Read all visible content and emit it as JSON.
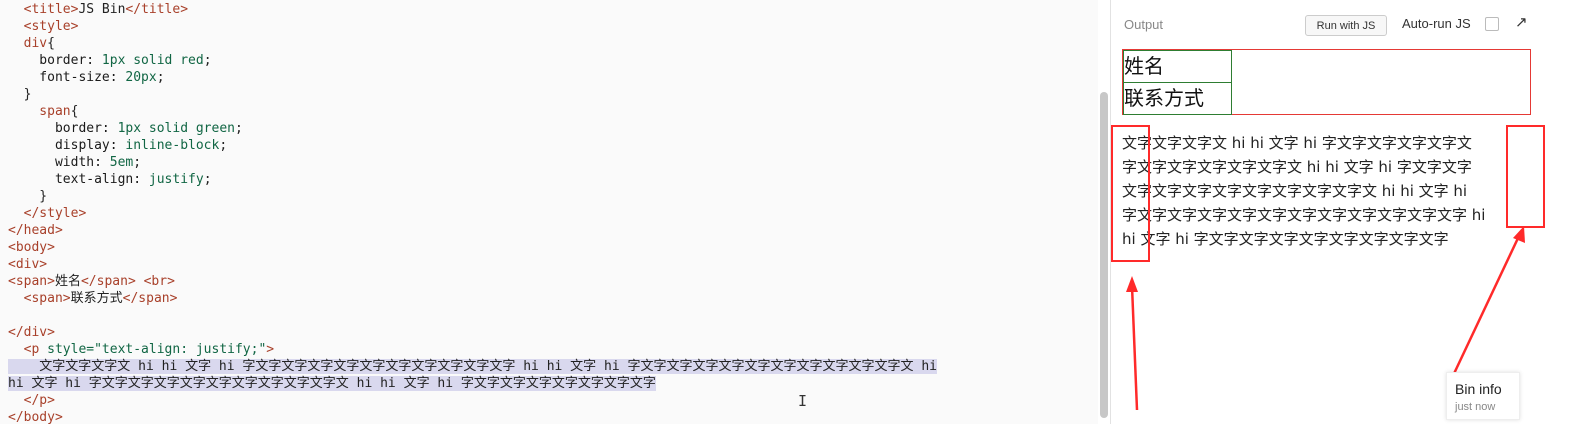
{
  "editor": {
    "lines": [
      [
        [
          "tag",
          "  <title>"
        ],
        [
          "plain",
          "JS Bin"
        ],
        [
          "tag",
          "</title>"
        ]
      ],
      [
        [
          "tag",
          "  <style>"
        ]
      ],
      [
        [
          "tag",
          "  div"
        ],
        [
          "plain",
          "{"
        ]
      ],
      [
        [
          "prop",
          "    border: "
        ],
        [
          "num",
          "1px"
        ],
        [
          "val",
          " solid red"
        ],
        [
          "plain",
          ";"
        ]
      ],
      [
        [
          "prop",
          "    font-size: "
        ],
        [
          "num",
          "20px"
        ],
        [
          "plain",
          ";"
        ]
      ],
      [
        [
          "plain",
          "  }"
        ]
      ],
      [
        [
          "tag",
          "    span"
        ],
        [
          "plain",
          "{"
        ]
      ],
      [
        [
          "prop",
          "      border: "
        ],
        [
          "num",
          "1px"
        ],
        [
          "val",
          " solid green"
        ],
        [
          "plain",
          ";"
        ]
      ],
      [
        [
          "prop",
          "      display: "
        ],
        [
          "val",
          "inline-block"
        ],
        [
          "plain",
          ";"
        ]
      ],
      [
        [
          "prop",
          "      width: "
        ],
        [
          "num",
          "5em"
        ],
        [
          "plain",
          ";"
        ]
      ],
      [
        [
          "prop",
          "      text-align: "
        ],
        [
          "val",
          "justify"
        ],
        [
          "plain",
          ";"
        ]
      ],
      [
        [
          "plain",
          "    }"
        ]
      ],
      [
        [
          "tag",
          "  </style>"
        ]
      ],
      [
        [
          "tag",
          "</head>"
        ]
      ],
      [
        [
          "tag",
          "<body>"
        ]
      ],
      [
        [
          "tag",
          "<div>"
        ]
      ],
      [
        [
          "tag",
          "<span>"
        ],
        [
          "plain",
          "姓名"
        ],
        [
          "tag",
          "</span>"
        ],
        [
          "plain",
          " "
        ],
        [
          "tag",
          "<br>"
        ]
      ],
      [
        [
          "tag",
          "  <span>"
        ],
        [
          "plain",
          "联系方式"
        ],
        [
          "tag",
          "</span>"
        ]
      ],
      [
        [
          "plain",
          ""
        ]
      ],
      [
        [
          "tag",
          "</div>"
        ]
      ],
      [
        [
          "tag",
          "  <p "
        ],
        [
          "val",
          "style=\"text-align: justify;\""
        ],
        [
          "tag",
          ">"
        ]
      ],
      [
        [
          "plain",
          "    文字文字文字文 hi hi 文字 hi 字文字文字文字文字文字文字文字文字文字文字 hi hi 文字 hi 字文字文字文字文字文字文字文字文字文字文字文 hi"
        ]
      ],
      [
        [
          "plain",
          "hi 文字 hi 字文字文字文字文字文字文字文字文字文字文 hi hi 文字 hi 字文字文字文字文字文字文字文字"
        ]
      ],
      [
        [
          "tag",
          "  </p>"
        ]
      ],
      [
        [
          "tag",
          "</body>"
        ]
      ]
    ]
  },
  "output": {
    "title": "Output",
    "run_button": "Run with JS",
    "autorun_label": "Auto-run JS",
    "popout_icon": "↗",
    "span1": "姓名",
    "span2": "联系方式",
    "paragraph_lines": [
      "文字文字文字文 hi hi 文字 hi 字文字文字文字文字文",
      "字文字文字文字文字文字文 hi hi 文字 hi 字文字文字",
      "文字文字文字文字文字文字文字文字文 hi hi 文字 hi",
      "字文字文字文字文字文字文字文字文字文字文字文字 hi",
      "hi 文字 hi 字文字文字文字文字文字文字文字文字"
    ],
    "bin_info_title": "Bin info",
    "bin_info_sub": "just now"
  }
}
